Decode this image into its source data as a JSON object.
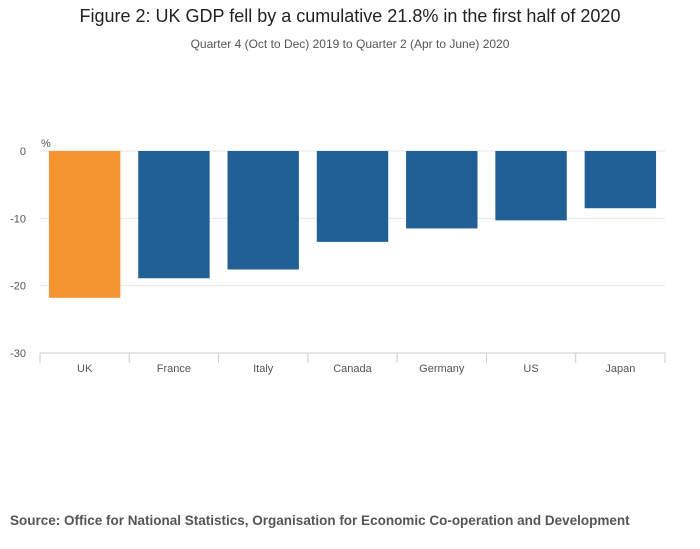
{
  "chart_data": {
    "type": "bar",
    "title": "Figure 2: UK GDP fell by a cumulative 21.8% in the first half of 2020",
    "subtitle": "Quarter 4 (Oct to Dec) 2019 to Quarter 2 (Apr to June) 2020",
    "ylabel": "%",
    "xlabel": "",
    "categories": [
      "UK",
      "France",
      "Italy",
      "Canada",
      "Germany",
      "US",
      "Japan"
    ],
    "values": [
      -21.8,
      -18.9,
      -17.6,
      -13.5,
      -11.5,
      -10.3,
      -8.5
    ],
    "colors": [
      "#f39431",
      "#206095",
      "#206095",
      "#206095",
      "#206095",
      "#206095",
      "#206095"
    ],
    "ylim": [
      -30,
      0
    ],
    "yticks": [
      0,
      -10,
      -20,
      -30
    ],
    "grid": true
  },
  "source": "Source: Office for National Statistics, Organisation for Economic Co-operation and Development"
}
